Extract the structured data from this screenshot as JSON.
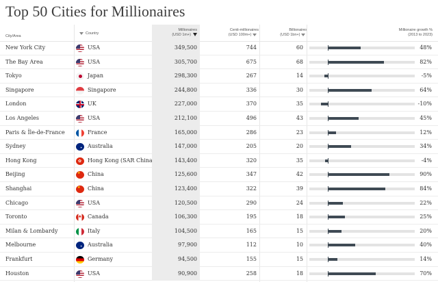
{
  "title": "Top 50 Cities for Millionaires",
  "columns": {
    "city": "City/Area",
    "country": "Country",
    "millionaires": "Millionaires",
    "millionaires_unit": "(USD 1m+)",
    "centi": "Centi-millionaires",
    "centi_unit": "(USD 100m+)",
    "billionaires": "Billionaires",
    "billionaires_unit": "(USD 1bn+)",
    "growth": "Millionaire growth %",
    "growth_unit": "(2013 to 2023)"
  },
  "colors": {
    "bar_fill": "#3f4a54",
    "bar_track": "#e3e3e3",
    "sorted_column": "#ececec"
  },
  "rows": [
    {
      "city": "New York City",
      "flag": "us-flag-icon",
      "country": "USA",
      "millionaires": "349,500",
      "centi": "744",
      "billionaires": "60",
      "growth": "48%",
      "growth_value": 48
    },
    {
      "city": "The Bay Area",
      "flag": "us-flag-icon",
      "country": "USA",
      "millionaires": "305,700",
      "centi": "675",
      "billionaires": "68",
      "growth": "82%",
      "growth_value": 82
    },
    {
      "city": "Tokyo",
      "flag": "japan-flag-icon",
      "country": "Japan",
      "millionaires": "298,300",
      "centi": "267",
      "billionaires": "14",
      "growth": "-5%",
      "growth_value": -5
    },
    {
      "city": "Singapore",
      "flag": "singapore-flag-icon",
      "country": "Singapore",
      "millionaires": "244,800",
      "centi": "336",
      "billionaires": "30",
      "growth": "64%",
      "growth_value": 64
    },
    {
      "city": "London",
      "flag": "uk-flag-icon",
      "country": "UK",
      "millionaires": "227,000",
      "centi": "370",
      "billionaires": "35",
      "growth": "-10%",
      "growth_value": -10
    },
    {
      "city": "Los Angeles",
      "flag": "us-flag-icon",
      "country": "USA",
      "millionaires": "212,100",
      "centi": "496",
      "billionaires": "43",
      "growth": "45%",
      "growth_value": 45
    },
    {
      "city": "Paris & Île-de-France",
      "flag": "france-flag-icon",
      "country": "France",
      "millionaires": "165,000",
      "centi": "286",
      "billionaires": "23",
      "growth": "12%",
      "growth_value": 12
    },
    {
      "city": "Sydney",
      "flag": "australia-flag-icon",
      "country": "Australia",
      "millionaires": "147,000",
      "centi": "205",
      "billionaires": "20",
      "growth": "34%",
      "growth_value": 34
    },
    {
      "city": "Hong Kong",
      "flag": "hong-kong-flag-icon",
      "country": "Hong Kong (SAR China)",
      "millionaires": "143,400",
      "centi": "320",
      "billionaires": "35",
      "growth": "-4%",
      "growth_value": -4
    },
    {
      "city": "Beijing",
      "flag": "china-flag-icon",
      "country": "China",
      "millionaires": "125,600",
      "centi": "347",
      "billionaires": "42",
      "growth": "90%",
      "growth_value": 90
    },
    {
      "city": "Shanghai",
      "flag": "china-flag-icon",
      "country": "China",
      "millionaires": "123,400",
      "centi": "322",
      "billionaires": "39",
      "growth": "84%",
      "growth_value": 84
    },
    {
      "city": "Chicago",
      "flag": "us-flag-icon",
      "country": "USA",
      "millionaires": "120,500",
      "centi": "290",
      "billionaires": "24",
      "growth": "22%",
      "growth_value": 22
    },
    {
      "city": "Toronto",
      "flag": "canada-flag-icon",
      "country": "Canada",
      "millionaires": "106,300",
      "centi": "195",
      "billionaires": "18",
      "growth": "25%",
      "growth_value": 25
    },
    {
      "city": "Milan & Lombardy",
      "flag": "italy-flag-icon",
      "country": "Italy",
      "millionaires": "104,500",
      "centi": "165",
      "billionaires": "15",
      "growth": "20%",
      "growth_value": 20
    },
    {
      "city": "Melbourne",
      "flag": "australia-flag-icon",
      "country": "Australia",
      "millionaires": "97,900",
      "centi": "112",
      "billionaires": "10",
      "growth": "40%",
      "growth_value": 40
    },
    {
      "city": "Frankfurt",
      "flag": "germany-flag-icon",
      "country": "Germany",
      "millionaires": "94,500",
      "centi": "155",
      "billionaires": "15",
      "growth": "14%",
      "growth_value": 14
    },
    {
      "city": "Houston",
      "flag": "us-flag-icon",
      "country": "USA",
      "millionaires": "90,900",
      "centi": "258",
      "billionaires": "18",
      "growth": "70%",
      "growth_value": 70
    }
  ]
}
